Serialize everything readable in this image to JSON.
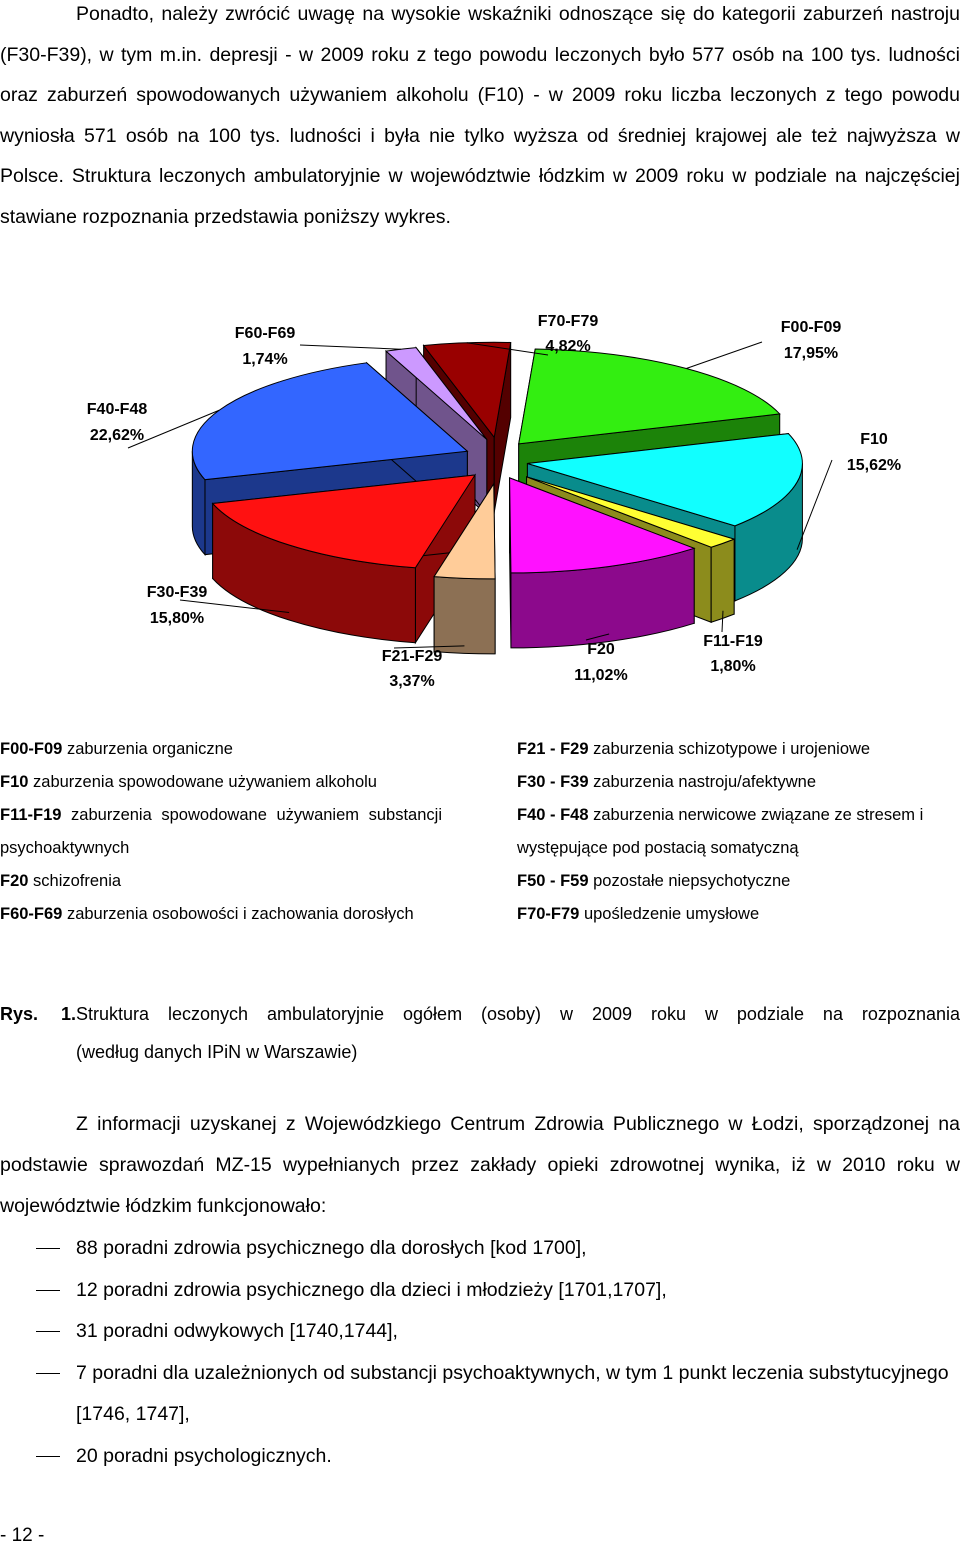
{
  "intro": {
    "text": "Ponadto, należy zwrócić uwagę na wysokie wskaźniki odnoszące się do kategorii zaburzeń nastroju (F30-F39), w tym m.in. depresji - w 2009 roku z tego powodu leczonych było 577 osób na 100 tys. ludności oraz zaburzeń spowodowanych używaniem alkoholu (F10) - w 2009 roku liczba leczonych z tego powodu wyniosła 571 osób na 100 tys. ludności i była nie tylko wyższa od średniej krajowej ale też najwyższa w Polsce. Struktura leczonych ambulatoryjnie w województwie łódzkim w 2009 roku w podziale na najczęściej stawiane rozpoznania przedstawia poniższy wykres."
  },
  "chart_data": {
    "type": "pie",
    "slices": [
      {
        "category": "F00-F09",
        "label": "17,95%",
        "value": 17.95,
        "color": "#33ee11"
      },
      {
        "category": "F10",
        "label": "15,62%",
        "value": 15.62,
        "color": "#11ffff"
      },
      {
        "category": "F11-F19",
        "label": "1,80%",
        "value": 1.8,
        "color": "#ffff33"
      },
      {
        "category": "F20",
        "label": "11,02%",
        "value": 11.02,
        "color": "#ff11ff"
      },
      {
        "category": "F21-F29",
        "label": "3,37%",
        "value": 3.37,
        "color": "#ffcc99"
      },
      {
        "category": "F30-F39",
        "label": "15,80%",
        "value": 15.8,
        "color": "#ff1111"
      },
      {
        "category": "F40-F48",
        "label": "22,62%",
        "value": 22.62,
        "color": "#3366ff"
      },
      {
        "category": "F60-F69",
        "label": "1,74%",
        "value": 1.74,
        "color": "#cc99ff"
      },
      {
        "category": "F70-F79",
        "label": "4,82%",
        "value": 4.82,
        "color": "#990000"
      }
    ]
  },
  "legend": {
    "left": [
      {
        "code": "F00-F09",
        "desc": " zaburzenia organiczne"
      },
      {
        "code": "F10",
        "desc": " zaburzenia spowodowane używaniem alkoholu"
      },
      {
        "code": "F11-F19",
        "desc": " zaburzenia spowodowane używaniem substancji psychoaktywnych"
      },
      {
        "code": "F20",
        "desc": " schizofrenia"
      },
      {
        "code": "F60-F69",
        "desc": " zaburzenia osobowości i zachowania dorosłych"
      }
    ],
    "right": [
      {
        "code": "F21 - F29",
        "desc": " zaburzenia schizotypowe i urojeniowe"
      },
      {
        "code": "F30 - F39",
        "desc": " zaburzenia nastroju/afektywne"
      },
      {
        "code": "F40 - F48",
        "desc": " zaburzenia nerwicowe związane ze stresem i występujące pod postacią somatyczną"
      },
      {
        "code": "F50 - F59",
        "desc": " pozostałe niepsychotyczne"
      },
      {
        "code": "F70-F79",
        "desc": " upośledzenie umysłowe"
      }
    ]
  },
  "caption": {
    "number": "Rys. 1.",
    "line1": "Struktura leczonych ambulatoryjnie ogółem (osoby) w 2009 roku w podziale na rozpoznania",
    "line2": "(według danych IPiN w Warszawie)"
  },
  "para2": {
    "text": "Z informacji uzyskanej z Wojewódzkiego Centrum Zdrowia Publicznego w Łodzi, sporządzonej na podstawie sprawozdań MZ-15 wypełnianych przez zakłady opieki zdrowotnej wynika, iż w 2010 roku w województwie łódzkim funkcjonowało:"
  },
  "list": [
    "88 poradni zdrowia psychicznego dla dorosłych [kod 1700],",
    "12 poradni zdrowia psychicznego dla dzieci i młodzieży [1701,1707],",
    "31 poradni odwykowych [1740,1744],",
    "7 poradni dla uzależnionych od substancji psychoaktywnych, w tym 1 punkt leczenia substytucyjnego [1746, 1747],",
    "20 poradni psychologicznych."
  ],
  "page_number": "- 12 -"
}
